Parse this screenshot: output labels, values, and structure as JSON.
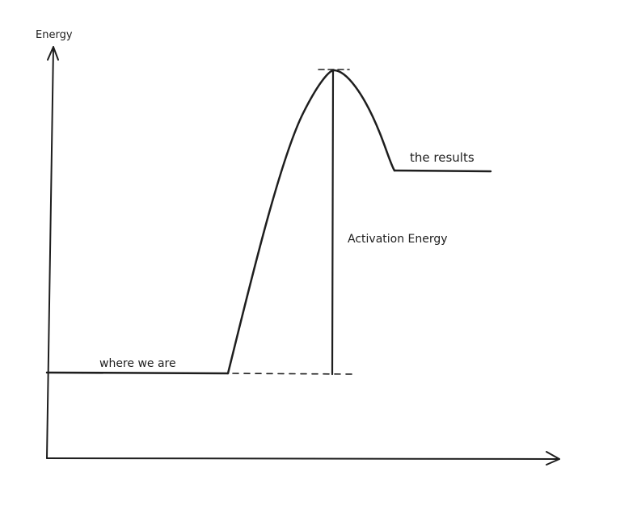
{
  "diagram": {
    "axis_label_y": "Energy",
    "label_reactants": "where we are",
    "label_products": "the results",
    "label_activation": "Activation Energy",
    "stroke_color": "#1e1e1e",
    "background_color": "#ffffff"
  }
}
